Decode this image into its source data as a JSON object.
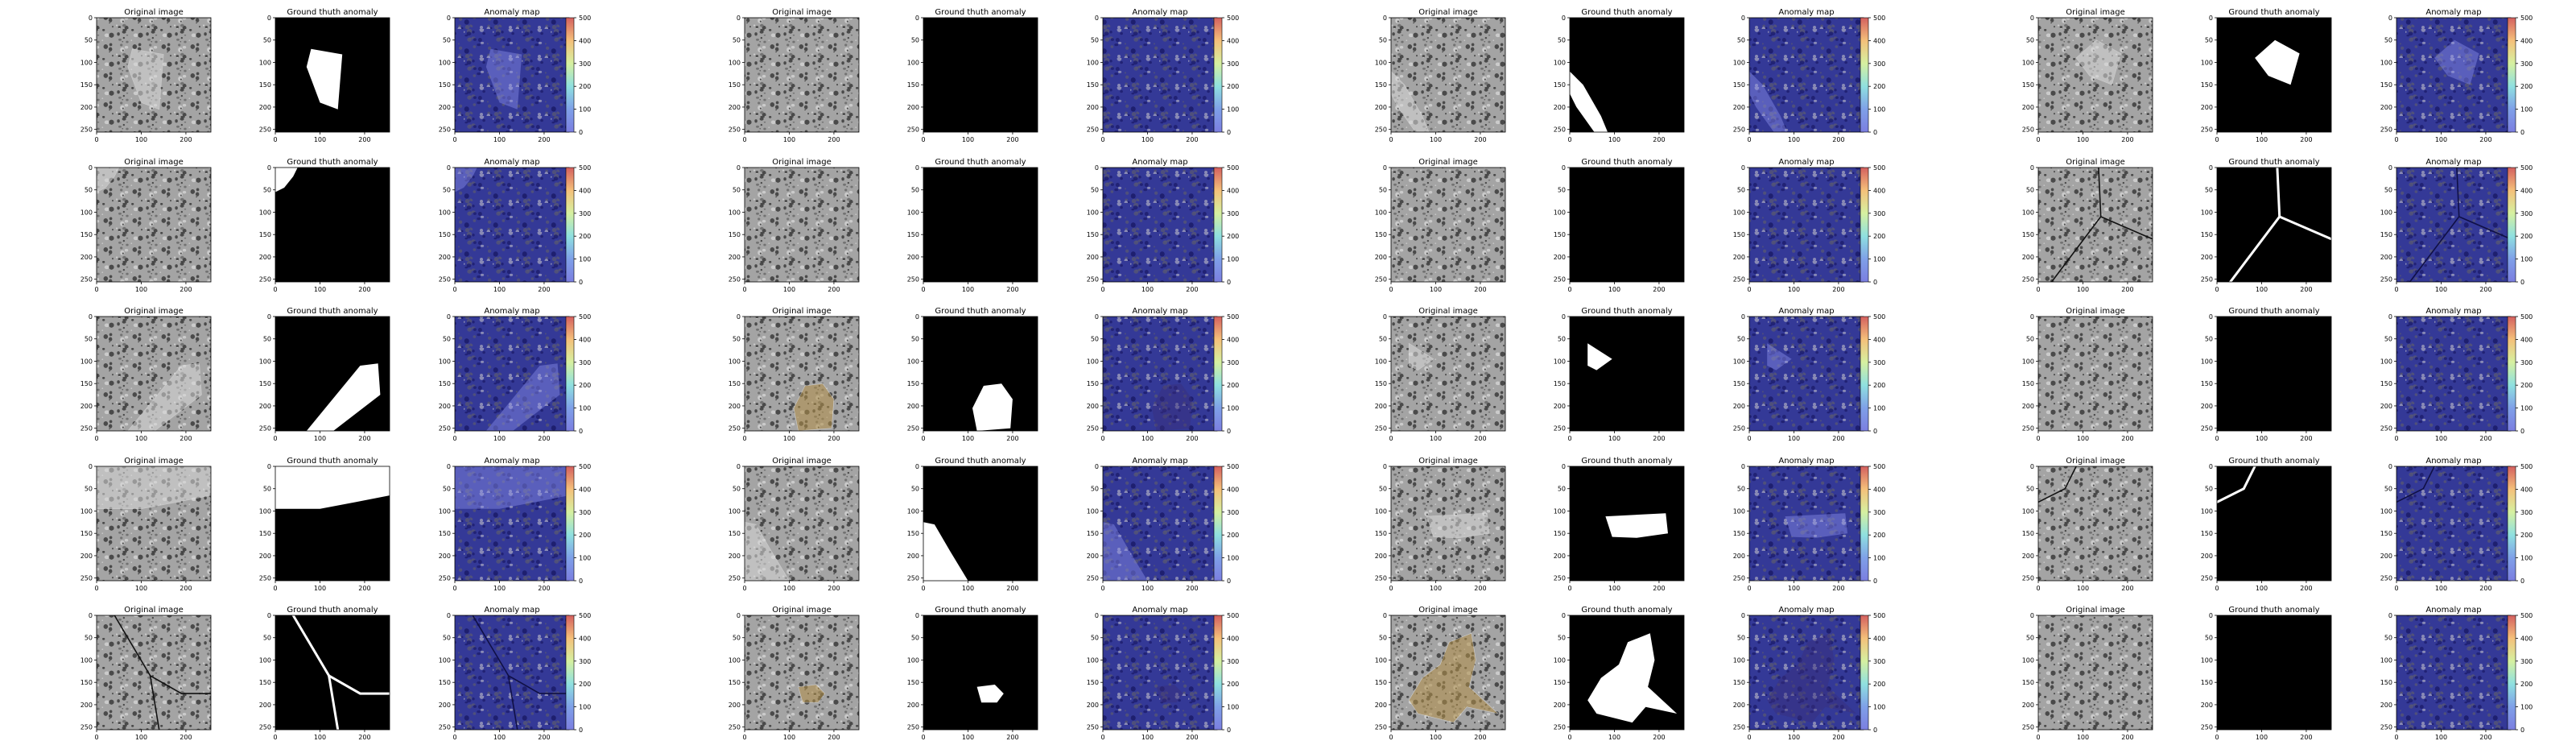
{
  "figure": {
    "panel_titles": {
      "original": "Original image",
      "ground_truth": "Ground thuth anomaly",
      "anomaly_map": "Anomaly map"
    },
    "image_axes": {
      "xlim": [
        0,
        256
      ],
      "ylim": [
        256,
        0
      ],
      "x_ticks": [
        0,
        100,
        200
      ],
      "y_ticks": [
        0,
        50,
        100,
        150,
        200,
        250
      ]
    },
    "colorbar": {
      "colormap": "jet",
      "range": [
        0,
        500
      ],
      "ticks": [
        0,
        100,
        200,
        300,
        400,
        500
      ]
    },
    "colors": {
      "background": "#ffffff",
      "mask_bg": "#000000",
      "mask_fg": "#ffffff",
      "heatmap_base": "#2a2f8f",
      "texture_light": "#a4a4a4",
      "texture_dark": "#3b3b3b"
    }
  },
  "chart_data": {
    "type": "heatmap",
    "layout": {
      "rows": 5,
      "sample_columns": 4,
      "panels_per_sample": [
        "Original image",
        "Ground thuth anomaly",
        "Anomaly map"
      ]
    },
    "samples": [
      {
        "row": 0,
        "col": 0,
        "defect": "glass",
        "mask": [
          [
            80,
            70
          ],
          [
            150,
            82
          ],
          [
            140,
            205
          ],
          [
            100,
            190
          ],
          [
            70,
            110
          ]
        ],
        "stroke": null
      },
      {
        "row": 0,
        "col": 1,
        "defect": "none",
        "mask": null,
        "stroke": null
      },
      {
        "row": 0,
        "col": 2,
        "defect": "glass",
        "mask": [
          [
            0,
            120
          ],
          [
            30,
            150
          ],
          [
            70,
            220
          ],
          [
            85,
            256
          ],
          [
            55,
            256
          ],
          [
            15,
            200
          ],
          [
            0,
            170
          ]
        ],
        "stroke": null
      },
      {
        "row": 0,
        "col": 3,
        "defect": "glass",
        "mask": [
          [
            130,
            50
          ],
          [
            185,
            80
          ],
          [
            165,
            150
          ],
          [
            115,
            130
          ],
          [
            85,
            90
          ]
        ],
        "stroke": null
      },
      {
        "row": 1,
        "col": 0,
        "defect": "glass",
        "mask": [
          [
            0,
            0
          ],
          [
            50,
            0
          ],
          [
            40,
            20
          ],
          [
            20,
            45
          ],
          [
            0,
            55
          ]
        ],
        "stroke": null
      },
      {
        "row": 1,
        "col": 1,
        "defect": "none",
        "mask": null,
        "stroke": null
      },
      {
        "row": 1,
        "col": 2,
        "defect": "none",
        "mask": null,
        "stroke": null
      },
      {
        "row": 1,
        "col": 3,
        "defect": "crack",
        "mask": null,
        "stroke": [
          [
            [
              135,
              0
            ],
            [
              140,
              110
            ],
            [
              30,
              256
            ]
          ],
          [
            [
              140,
              110
            ],
            [
              256,
              160
            ]
          ]
        ]
      },
      {
        "row": 2,
        "col": 0,
        "defect": "glass",
        "mask": [
          [
            70,
            256
          ],
          [
            190,
            110
          ],
          [
            230,
            105
          ],
          [
            235,
            175
          ],
          [
            130,
            256
          ]
        ],
        "stroke": null
      },
      {
        "row": 2,
        "col": 1,
        "defect": "rock",
        "mask": [
          [
            135,
            155
          ],
          [
            175,
            150
          ],
          [
            200,
            185
          ],
          [
            195,
            250
          ],
          [
            120,
            256
          ],
          [
            110,
            205
          ]
        ],
        "stroke": null
      },
      {
        "row": 2,
        "col": 2,
        "defect": "glass",
        "mask": [
          [
            40,
            60
          ],
          [
            95,
            95
          ],
          [
            60,
            120
          ],
          [
            40,
            110
          ]
        ],
        "stroke": null
      },
      {
        "row": 2,
        "col": 3,
        "defect": "none",
        "mask": null,
        "stroke": null
      },
      {
        "row": 3,
        "col": 0,
        "defect": "glass",
        "mask": [
          [
            0,
            0
          ],
          [
            256,
            0
          ],
          [
            256,
            65
          ],
          [
            180,
            80
          ],
          [
            100,
            95
          ],
          [
            0,
            95
          ]
        ],
        "stroke": null
      },
      {
        "row": 3,
        "col": 1,
        "defect": "glass",
        "mask": [
          [
            0,
            125
          ],
          [
            25,
            130
          ],
          [
            60,
            190
          ],
          [
            100,
            256
          ],
          [
            0,
            256
          ]
        ],
        "stroke": null
      },
      {
        "row": 3,
        "col": 2,
        "defect": "glass",
        "mask": [
          [
            80,
            112
          ],
          [
            215,
            105
          ],
          [
            220,
            150
          ],
          [
            150,
            160
          ],
          [
            95,
            158
          ]
        ],
        "stroke": null
      },
      {
        "row": 3,
        "col": 3,
        "defect": "crack",
        "mask": null,
        "stroke": [
          [
            [
              85,
              0
            ],
            [
              60,
              50
            ],
            [
              0,
              80
            ]
          ]
        ]
      },
      {
        "row": 4,
        "col": 0,
        "defect": "crack",
        "mask": null,
        "stroke": [
          [
            [
              40,
              0
            ],
            [
              120,
              135
            ],
            [
              140,
              256
            ]
          ],
          [
            [
              120,
              135
            ],
            [
              190,
              175
            ],
            [
              256,
              175
            ]
          ]
        ]
      },
      {
        "row": 4,
        "col": 1,
        "defect": "rock",
        "mask": [
          [
            120,
            160
          ],
          [
            160,
            155
          ],
          [
            180,
            175
          ],
          [
            165,
            195
          ],
          [
            130,
            195
          ]
        ],
        "stroke": null
      },
      {
        "row": 4,
        "col": 2,
        "defect": "rock",
        "mask": [
          [
            130,
            60
          ],
          [
            180,
            40
          ],
          [
            190,
            100
          ],
          [
            175,
            160
          ],
          [
            240,
            220
          ],
          [
            170,
            205
          ],
          [
            140,
            240
          ],
          [
            60,
            220
          ],
          [
            40,
            190
          ],
          [
            70,
            140
          ],
          [
            110,
            110
          ]
        ],
        "stroke": null
      },
      {
        "row": 4,
        "col": 3,
        "defect": "none",
        "mask": null,
        "stroke": null
      }
    ]
  }
}
